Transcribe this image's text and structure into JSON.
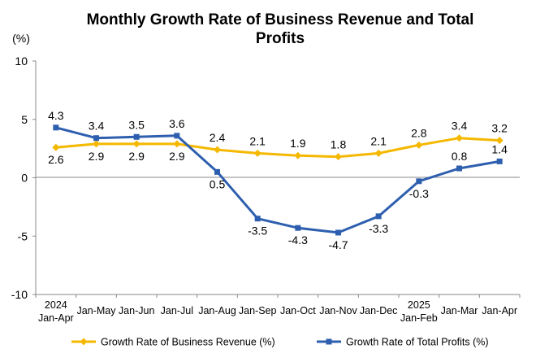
{
  "chart_data": {
    "type": "line",
    "title_lines": [
      "Monthly Growth Rate of Business Revenue and Total",
      "Profits"
    ],
    "ylabel": "(%)",
    "ylim": [
      -10,
      10
    ],
    "yticks": [
      {
        "value": 10,
        "label": "10"
      },
      {
        "value": 5,
        "label": "5"
      },
      {
        "value": 0,
        "label": "0"
      },
      {
        "value": -5,
        "label": "-5"
      },
      {
        "value": -10,
        "label": "-10"
      }
    ],
    "categories": [
      [
        "2024",
        "Jan-Apr"
      ],
      [
        "Jan-May"
      ],
      [
        "Jan-Jun"
      ],
      [
        "Jan-Jul"
      ],
      [
        "Jan-Aug"
      ],
      [
        "Jan-Sep"
      ],
      [
        "Jan-Oct"
      ],
      [
        "Jan-Nov"
      ],
      [
        "Jan-Dec"
      ],
      [
        "2025",
        "Jan-Feb"
      ],
      [
        "Jan-Mar"
      ],
      [
        "Jan-Apr"
      ]
    ],
    "series": [
      {
        "name": "Growth Rate of Business Revenue (%)",
        "color": "#F5B800",
        "marker": "diamond",
        "values": [
          2.6,
          2.9,
          2.9,
          2.9,
          2.4,
          2.1,
          1.9,
          1.8,
          2.1,
          2.8,
          3.4,
          3.2
        ],
        "labels": [
          "2.6",
          "2.9",
          "2.9",
          "2.9",
          "2.4",
          "2.1",
          "1.9",
          "1.8",
          "2.1",
          "2.8",
          "3.4",
          "3.2"
        ],
        "label_pos": [
          "below",
          "below",
          "below",
          "below",
          "above",
          "above",
          "above",
          "above",
          "above",
          "above",
          "above",
          "above"
        ]
      },
      {
        "name": "Growth Rate of Total Profits (%)",
        "color": "#2E5FAF",
        "marker": "square",
        "values": [
          4.3,
          3.4,
          3.5,
          3.6,
          0.5,
          -3.5,
          -4.3,
          -4.7,
          -3.3,
          -0.3,
          0.8,
          1.4
        ],
        "labels": [
          "4.3",
          "3.4",
          "3.5",
          "3.6",
          "0.5",
          "-3.5",
          "-4.3",
          "-4.7",
          "-3.3",
          "-0.3",
          "0.8",
          "1.4"
        ],
        "label_pos": [
          "above",
          "above",
          "above",
          "above",
          "below",
          "below",
          "below",
          "below",
          "below",
          "below",
          "above",
          "above"
        ]
      }
    ],
    "legend_position": "bottom"
  }
}
